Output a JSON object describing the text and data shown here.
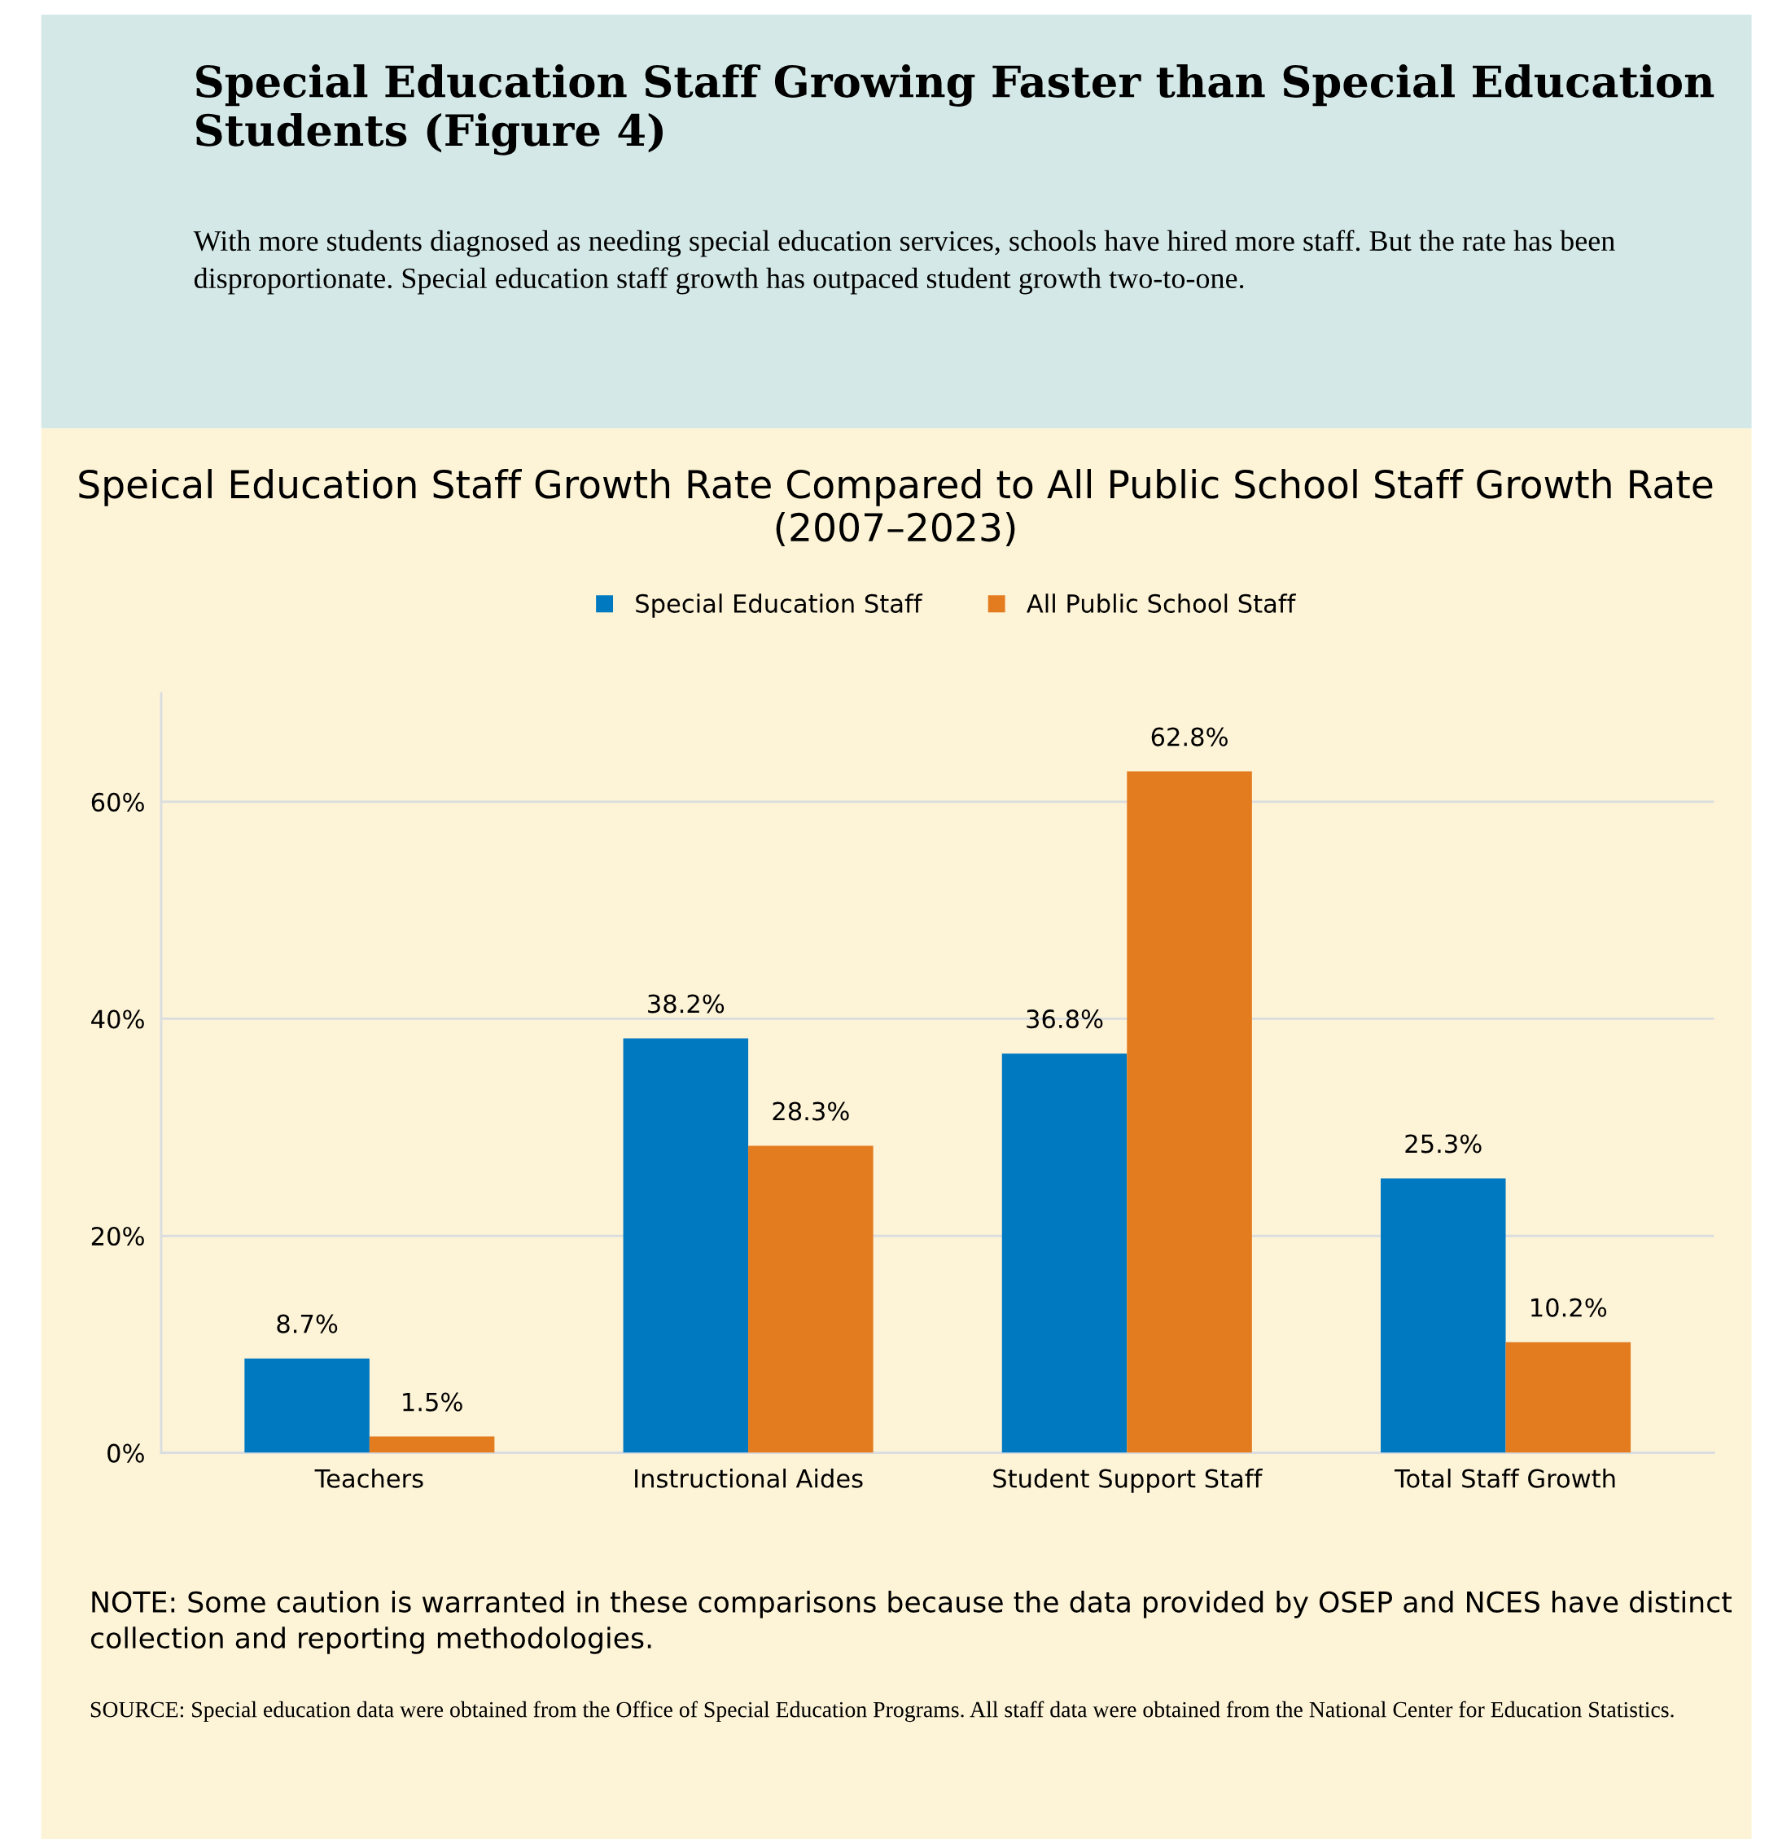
{
  "chart_data": {
    "type": "bar",
    "title": "Special Education Staff Growing Faster than Special Education Students (Figure 4)",
    "subtitle": "With more students diagnosed as needing special education services, schools have hired more staff. But the rate has been disproportionate. Special education staff growth has outpaced student growth two-to-one.",
    "annotations": [
      "Speical Education Staff Growth Rate Compared to All Public School Staff Growth Rate (2007–2023)",
      "NOTE: Some caution is warranted in these comparisons because the data provided by OSEP and NCES have distinct collection and reporting methodologies.",
      "SOURCE: Special education data were obtained from the Office of Special Education Programs. All staff data were obtained from the National Center for Education Statistics."
    ],
    "categories": [
      "Teachers",
      "Instructional Aides",
      "Student Support Staff",
      "Total Staff Growth"
    ],
    "series": [
      {
        "name": "Special Education Staff",
        "color": "#0079c1",
        "values": [
          8.7,
          38.2,
          36.8,
          25.3
        ],
        "value_labels": [
          "8.7%",
          "38.2%",
          "36.8%",
          "25.3%"
        ]
      },
      {
        "name": "All Public School Staff",
        "color": "#e37b1f",
        "values": [
          1.5,
          28.3,
          62.8,
          10.2
        ],
        "value_labels": [
          "1.5%",
          "28.3%",
          "62.8%",
          "10.2%"
        ]
      }
    ],
    "ylim": [
      0,
      70
    ],
    "yticks": [
      {
        "value": 0,
        "label": "0%"
      },
      {
        "value": 20,
        "label": "20%"
      },
      {
        "value": 40,
        "label": "40%"
      },
      {
        "value": 60,
        "label": "60%"
      }
    ],
    "grid": "y",
    "legend": "top"
  }
}
